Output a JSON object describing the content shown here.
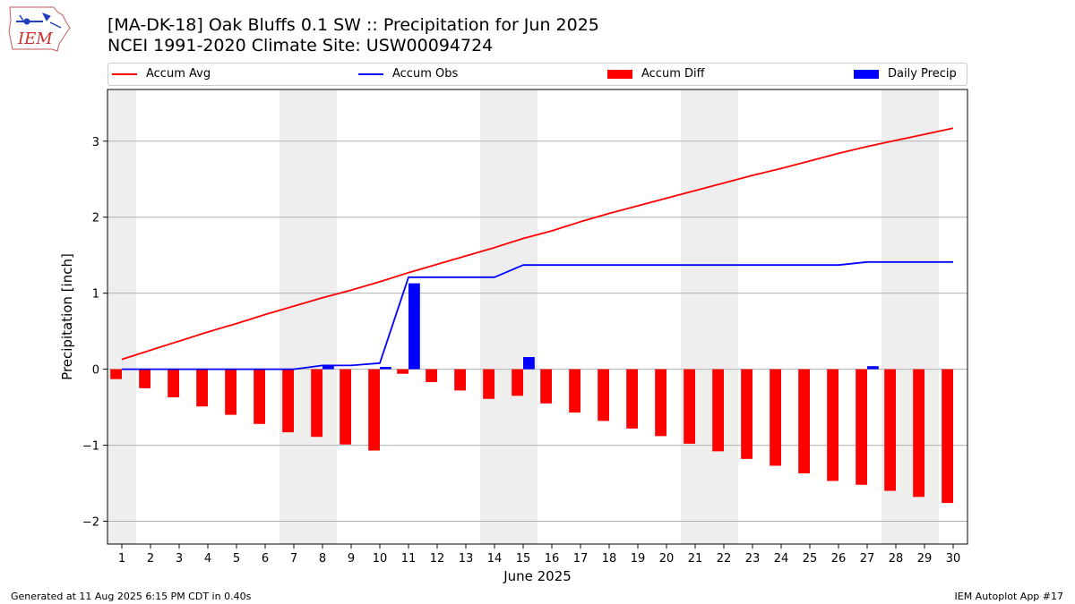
{
  "header": {
    "title_line1": "[MA-DK-18] Oak Bluffs 0.1 SW :: Precipitation for Jun 2025",
    "title_line2": "NCEI 1991-2020 Climate Site: USW00094724",
    "logo_text": "IEM"
  },
  "footer": {
    "left": "Generated at 11 Aug 2025 6:15 PM CDT in 0.40s",
    "right": "IEM Autoplot App #17"
  },
  "colors": {
    "accum_avg": "#ff0000",
    "accum_obs": "#0000ff",
    "accum_diff": "#ff0000",
    "daily_precip": "#0000ff",
    "weekend_band": "#eeeeee",
    "grid": "#b0b0b0"
  },
  "chart_data": {
    "type": "bar",
    "xlabel": "June 2025",
    "ylabel": "Precipitation [inch]",
    "ylim": [
      -2.3,
      3.68
    ],
    "yticks": [
      -2,
      -1,
      0,
      1,
      2,
      3
    ],
    "ytick_labels": [
      "−2",
      "−1",
      "0",
      "1",
      "2",
      "3"
    ],
    "grid": "horizontal",
    "legend_placement": "top",
    "x": [
      1,
      2,
      3,
      4,
      5,
      6,
      7,
      8,
      9,
      10,
      11,
      12,
      13,
      14,
      15,
      16,
      17,
      18,
      19,
      20,
      21,
      22,
      23,
      24,
      25,
      26,
      27,
      28,
      29,
      30
    ],
    "xtick_labels": [
      "1",
      "2",
      "3",
      "4",
      "5",
      "6",
      "7",
      "8",
      "9",
      "10",
      "11",
      "12",
      "13",
      "14",
      "15",
      "16",
      "17",
      "18",
      "19",
      "20",
      "21",
      "22",
      "23",
      "24",
      "25",
      "26",
      "27",
      "28",
      "29",
      "30"
    ],
    "weekend_bands": [
      [
        1,
        1
      ],
      [
        7,
        8
      ],
      [
        14,
        15
      ],
      [
        21,
        22
      ],
      [
        28,
        29
      ]
    ],
    "series": [
      {
        "name": "Accum Avg",
        "kind": "line",
        "color": "#ff0000",
        "values": [
          0.13,
          0.25,
          0.37,
          0.49,
          0.6,
          0.72,
          0.83,
          0.94,
          1.04,
          1.15,
          1.27,
          1.38,
          1.49,
          1.6,
          1.72,
          1.82,
          1.94,
          2.05,
          2.15,
          2.25,
          2.35,
          2.45,
          2.55,
          2.64,
          2.74,
          2.84,
          2.93,
          3.01,
          3.09,
          3.17
        ]
      },
      {
        "name": "Accum Obs",
        "kind": "line",
        "color": "#0000ff",
        "values": [
          0,
          0,
          0,
          0,
          0,
          0,
          0,
          0.05,
          0.05,
          0.08,
          1.21,
          1.21,
          1.21,
          1.21,
          1.37,
          1.37,
          1.37,
          1.37,
          1.37,
          1.37,
          1.37,
          1.37,
          1.37,
          1.37,
          1.37,
          1.37,
          1.41,
          1.41,
          1.41,
          1.41
        ]
      },
      {
        "name": "Accum Diff",
        "kind": "bar",
        "color": "#ff0000",
        "values": [
          -0.13,
          -0.25,
          -0.37,
          -0.49,
          -0.6,
          -0.72,
          -0.83,
          -0.89,
          -0.99,
          -1.07,
          -0.06,
          -0.17,
          -0.28,
          -0.39,
          -0.35,
          -0.45,
          -0.57,
          -0.68,
          -0.78,
          -0.88,
          -0.98,
          -1.08,
          -1.18,
          -1.27,
          -1.37,
          -1.47,
          -1.52,
          -1.6,
          -1.68,
          -1.76
        ]
      },
      {
        "name": "Daily Precip",
        "kind": "bar",
        "color": "#0000ff",
        "values": [
          0,
          0,
          0,
          0,
          0,
          0,
          0,
          0.05,
          0,
          0.03,
          1.13,
          0,
          0,
          0,
          0.16,
          0,
          0,
          0,
          0,
          0,
          0,
          0,
          0,
          0,
          0,
          0,
          0.04,
          0,
          0,
          0
        ]
      }
    ]
  }
}
